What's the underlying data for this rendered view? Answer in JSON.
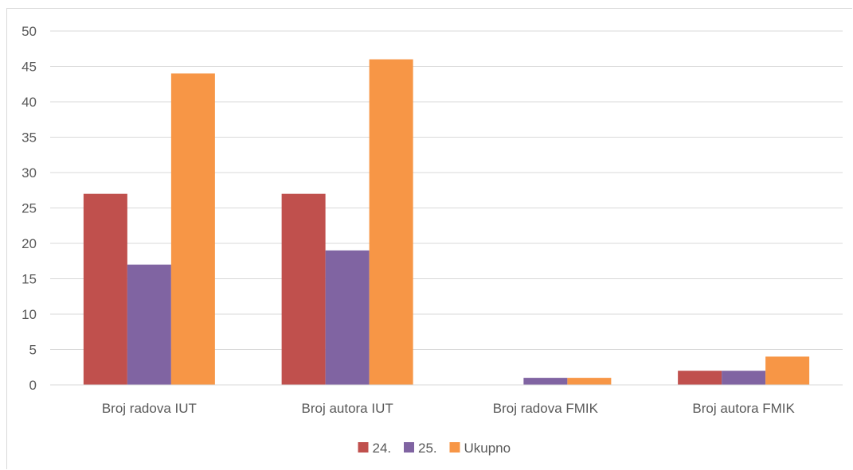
{
  "chart_data": {
    "type": "bar",
    "title": "",
    "xlabel": "",
    "ylabel": "",
    "categories": [
      "Broj radova IUT",
      "Broj autora IUT",
      "Broj radova FMIK",
      "Broj autora FMIK"
    ],
    "series": [
      {
        "name": "24.",
        "color": "#c0504d",
        "values": [
          27,
          27,
          0,
          2
        ]
      },
      {
        "name": "25.",
        "color": "#8064a2",
        "values": [
          17,
          19,
          1,
          2
        ]
      },
      {
        "name": "Ukupno",
        "color": "#f79646",
        "values": [
          44,
          46,
          1,
          4
        ]
      }
    ],
    "ylim": [
      0,
      50
    ],
    "yticks": [
      "0",
      "5",
      "10",
      "15",
      "20",
      "25",
      "30",
      "35",
      "40",
      "45",
      "50"
    ],
    "grid": true,
    "legend_position": "bottom"
  }
}
